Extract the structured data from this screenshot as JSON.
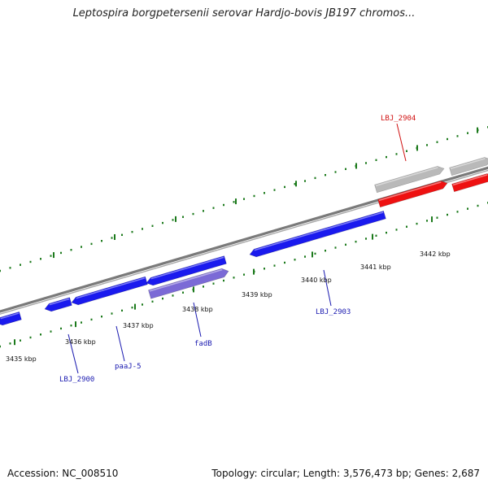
{
  "title": "Leptospira borgpetersenii serovar Hardjo-bovis JB197 chromos...",
  "footer": {
    "accession": "Accession: NC_008510",
    "summary": "Topology: circular; Length: 3,576,473 bp; Genes: 2,687"
  },
  "colors": {
    "backbone": "#7a7a7a",
    "tick": "#1c7a1c",
    "gene_forward_blue": "#1a1aee",
    "gene_purple": "#7b6ad6",
    "gene_grey": "#b9b9b9",
    "gene_red": "#ee1111",
    "label_blue": "#1a1ab0",
    "label_red": "#d01010"
  },
  "scale_labels": [
    "3435 kbp",
    "3436 kbp",
    "3437 kbp",
    "3438 kbp",
    "3439 kbp",
    "3440 kbp",
    "3441 kbp",
    "3442 kbp"
  ],
  "gene_labels": [
    {
      "text": "LBJ_2904",
      "color": "red"
    },
    {
      "text": "LBJ_2903",
      "color": "blue"
    },
    {
      "text": "fadB",
      "color": "blue"
    },
    {
      "text": "paaJ-5",
      "color": "blue"
    },
    {
      "text": "LBJ_2900",
      "color": "blue"
    }
  ]
}
